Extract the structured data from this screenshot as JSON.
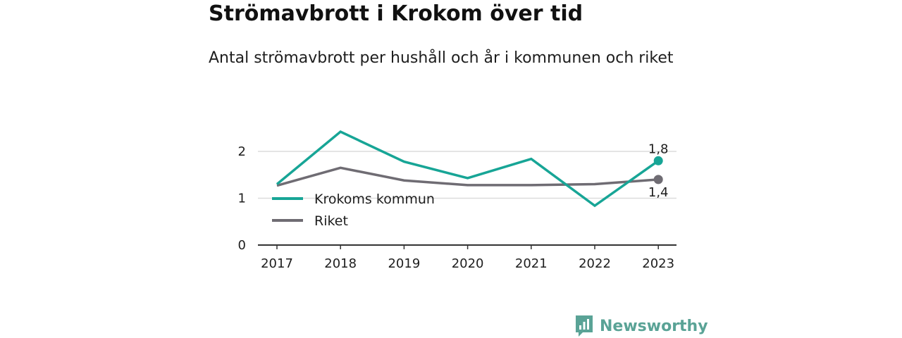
{
  "title": "Strömavbrott i Krokom över tid",
  "subtitle": "Antal strömavbrott per hushåll och år i kommunen och riket",
  "brand": {
    "name": "Newsworthy",
    "color": "#5aa396",
    "icon": "newsworthy-logo-icon"
  },
  "chart_data": {
    "type": "line",
    "x": [
      "2017",
      "2018",
      "2019",
      "2020",
      "2021",
      "2022",
      "2023"
    ],
    "ylim": [
      0,
      2.2
    ],
    "yticks": [
      "0",
      "1",
      "2"
    ],
    "grid": true,
    "legend_position": "left",
    "series": [
      {
        "name": "Krokoms kommun",
        "color": "#17a596",
        "values": [
          1.3,
          2.42,
          1.78,
          1.43,
          1.84,
          0.84,
          1.8
        ],
        "end_label": "1,8"
      },
      {
        "name": "Riket",
        "color": "#6f6c73",
        "values": [
          1.27,
          1.65,
          1.38,
          1.28,
          1.28,
          1.3,
          1.4
        ],
        "end_label": "1,4"
      }
    ]
  }
}
